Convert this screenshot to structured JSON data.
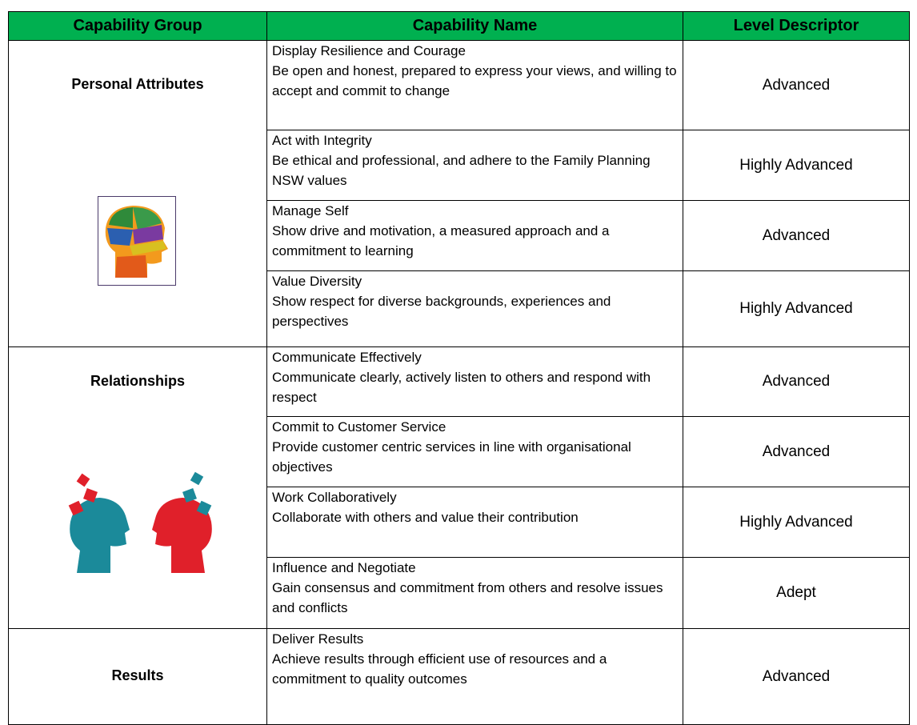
{
  "table": {
    "header": [
      "Capability Group",
      "Capability Name",
      "Level Descriptor"
    ],
    "groups": [
      {
        "name": "Personal Attributes",
        "rows": [
          {
            "name": "Display Resilience and Courage",
            "description": "Be open and honest, prepared to express your views, and willing to accept and commit to change",
            "level": "Advanced"
          },
          {
            "name": "Act with Integrity",
            "description": "Be ethical and professional, and adhere to the Family Planning NSW values",
            "level": "Highly Advanced"
          },
          {
            "name": "Manage Self",
            "description": "Show drive and motivation, a measured approach and a commitment to learning",
            "level": "Advanced"
          },
          {
            "name": "Value Diversity",
            "description": "Show respect for diverse backgrounds, experiences and perspectives",
            "level": "Highly Advanced"
          }
        ]
      },
      {
        "name": "Relationships",
        "rows": [
          {
            "name": "Communicate Effectively",
            "description": "Communicate clearly, actively listen to others and respond with respect",
            "level": "Advanced"
          },
          {
            "name": "Commit to Customer Service",
            "description": "Provide customer centric services in line with organisational objectives",
            "level": "Advanced"
          },
          {
            "name": "Work Collaboratively",
            "description": "Collaborate with others and value their contribution",
            "level": "Highly Advanced"
          },
          {
            "name": "Influence and Negotiate",
            "description": "Gain consensus and commitment from others and resolve issues and conflicts",
            "level": "Adept"
          }
        ]
      },
      {
        "name": "Results",
        "rows": [
          {
            "name": "Deliver Results",
            "description": "Achieve results through efficient use of resources and a commitment to quality outcomes",
            "level": "Advanced"
          }
        ]
      }
    ]
  }
}
